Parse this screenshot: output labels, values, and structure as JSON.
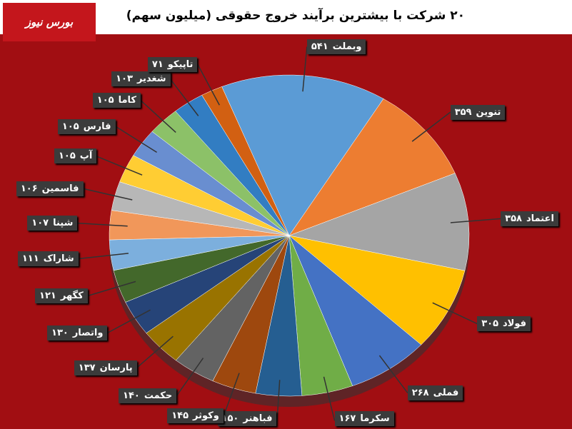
{
  "logo": "بورس نیوز",
  "chart_data": {
    "type": "pie",
    "title": "۲۰ شرکت با بیشترین برآیند خروج حقوقی (میلیون سهم)",
    "categories": [
      "وبملت",
      "تنوین",
      "اعتماد",
      "فولاد",
      "فملی",
      "سکرما",
      "فباهنر",
      "وکوثر",
      "حکمت",
      "پارسان",
      "واتصار",
      "کگهر",
      "شاراک",
      "شپنا",
      "فاسمین",
      "آپ",
      "فارس",
      "کاما",
      "شغدیر",
      "تاپیکو"
    ],
    "values": [
      541,
      359,
      358,
      305,
      268,
      167,
      150,
      145,
      140,
      137,
      130,
      121,
      111,
      107,
      106,
      105,
      105,
      105,
      103,
      71
    ],
    "value_labels": [
      "۵۴۱",
      "۳۵۹",
      "۳۵۸",
      "۳۰۵",
      "۲۶۸",
      "۱۶۷",
      "۱۵۰",
      "۱۴۵",
      "۱۴۰",
      "۱۳۷",
      "۱۳۰",
      "۱۲۱",
      "۱۱۱",
      "۱۰۷",
      "۱۰۶",
      "۱۰۵",
      "۱۰۵",
      "۱۰۵",
      "۱۰۳",
      "۷۱"
    ],
    "colors": [
      "#5b9bd5",
      "#ed7d31",
      "#a5a5a5",
      "#ffc000",
      "#4472c4",
      "#70ad47",
      "#255e91",
      "#9e480e",
      "#636363",
      "#997300",
      "#264478",
      "#43682b",
      "#7cafdd",
      "#f1975a",
      "#b7b7b7",
      "#ffcd33",
      "#698ed0",
      "#8cc168",
      "#327dc2",
      "#d26012"
    ]
  }
}
